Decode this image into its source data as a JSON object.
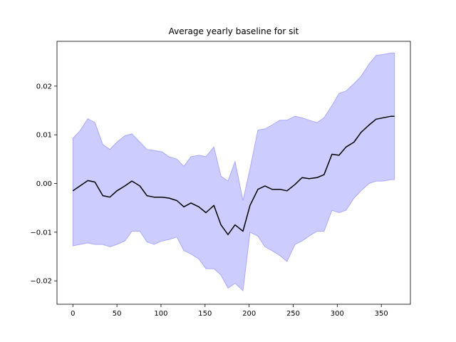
{
  "chart_data": {
    "type": "line",
    "title": "Average yearly baseline for sit",
    "xlabel": "",
    "ylabel": "",
    "xlim": [
      -18,
      383
    ],
    "ylim": [
      -0.0248,
      0.0292
    ],
    "xticks": [
      0,
      50,
      100,
      150,
      200,
      250,
      300,
      350
    ],
    "xtick_labels": [
      "0",
      "50",
      "100",
      "150",
      "200",
      "250",
      "300",
      "350"
    ],
    "yticks": [
      -0.02,
      -0.01,
      0.0,
      0.01,
      0.02
    ],
    "ytick_labels": [
      "−0.02",
      "−0.01",
      "0.00",
      "0.01",
      "0.02"
    ],
    "grid": false,
    "colors": {
      "mean_line": "#000000",
      "band_fill": "#ccccff",
      "band_edge": "#aaaaff"
    },
    "x": [
      0,
      8,
      17,
      25,
      34,
      42,
      50,
      59,
      67,
      76,
      84,
      92,
      101,
      109,
      118,
      126,
      134,
      143,
      151,
      160,
      168,
      176,
      184,
      193,
      201,
      210,
      218,
      226,
      235,
      243,
      252,
      260,
      268,
      277,
      285,
      294,
      302,
      310,
      319,
      327,
      336,
      344,
      352,
      361,
      365
    ],
    "mean": [
      -0.0015,
      -0.0005,
      0.0006,
      0.0003,
      -0.0025,
      -0.0028,
      -0.0015,
      -0.0005,
      0.0005,
      -0.0005,
      -0.0025,
      -0.0028,
      -0.0028,
      -0.003,
      -0.0035,
      -0.0048,
      -0.004,
      -0.0048,
      -0.006,
      -0.0045,
      -0.0085,
      -0.0105,
      -0.0085,
      -0.0098,
      -0.0045,
      -0.0012,
      -0.0005,
      -0.0012,
      -0.0012,
      -0.0015,
      -0.0002,
      0.0012,
      0.001,
      0.0012,
      0.0018,
      0.006,
      0.0058,
      0.0075,
      0.0085,
      0.0105,
      0.012,
      0.0132,
      0.0135,
      0.0138,
      0.0138
    ],
    "upper": [
      0.0093,
      0.0108,
      0.0133,
      0.0125,
      0.008,
      0.007,
      0.0085,
      0.0098,
      0.0102,
      0.0085,
      0.007,
      0.0068,
      0.0065,
      0.0055,
      0.005,
      0.0035,
      0.0055,
      0.0058,
      0.0055,
      0.0075,
      0.0015,
      0.0005,
      0.0045,
      -0.0035,
      0.003,
      0.011,
      0.0112,
      0.012,
      0.013,
      0.013,
      0.0138,
      0.0135,
      0.013,
      0.0125,
      0.0135,
      0.016,
      0.0185,
      0.019,
      0.0205,
      0.022,
      0.0245,
      0.0263,
      0.0265,
      0.0268,
      0.0268
    ],
    "lower": [
      -0.0128,
      -0.0125,
      -0.0122,
      -0.0125,
      -0.0125,
      -0.013,
      -0.0125,
      -0.0118,
      -0.0098,
      -0.0098,
      -0.012,
      -0.0125,
      -0.0118,
      -0.0115,
      -0.011,
      -0.0138,
      -0.0145,
      -0.0155,
      -0.0175,
      -0.0175,
      -0.0188,
      -0.0215,
      -0.0205,
      -0.022,
      -0.01,
      -0.0108,
      -0.013,
      -0.0138,
      -0.0148,
      -0.016,
      -0.0125,
      -0.0118,
      -0.0108,
      -0.0098,
      -0.0098,
      -0.0055,
      -0.006,
      -0.0055,
      -0.003,
      -0.0015,
      0.0,
      0.0005,
      0.0005,
      0.0008,
      0.0008
    ]
  }
}
